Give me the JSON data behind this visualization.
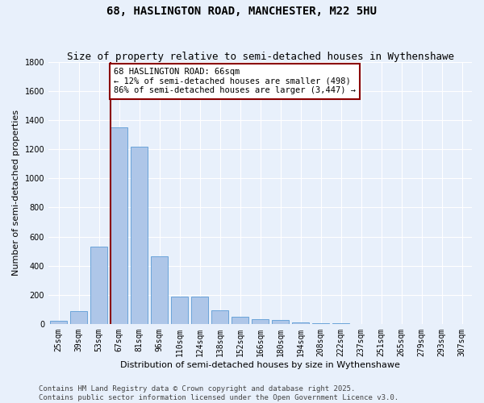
{
  "title": "68, HASLINGTON ROAD, MANCHESTER, M22 5HU",
  "subtitle": "Size of property relative to semi-detached houses in Wythenshawe",
  "xlabel": "Distribution of semi-detached houses by size in Wythenshawe",
  "ylabel": "Number of semi-detached properties",
  "footer_line1": "Contains HM Land Registry data © Crown copyright and database right 2025.",
  "footer_line2": "Contains public sector information licensed under the Open Government Licence v3.0.",
  "annotation_title": "68 HASLINGTON ROAD: 66sqm",
  "annotation_line1": "← 12% of semi-detached houses are smaller (498)",
  "annotation_line2": "86% of semi-detached houses are larger (3,447) →",
  "bar_categories": [
    "25sqm",
    "39sqm",
    "53sqm",
    "67sqm",
    "81sqm",
    "96sqm",
    "110sqm",
    "124sqm",
    "138sqm",
    "152sqm",
    "166sqm",
    "180sqm",
    "194sqm",
    "208sqm",
    "222sqm",
    "237sqm",
    "251sqm",
    "265sqm",
    "279sqm",
    "293sqm",
    "307sqm"
  ],
  "bar_values": [
    20,
    85,
    530,
    1350,
    1220,
    465,
    185,
    185,
    95,
    50,
    32,
    25,
    10,
    5,
    2,
    1,
    0,
    0,
    0,
    0,
    0
  ],
  "bar_color": "#aec6e8",
  "bar_edge_color": "#5b9bd5",
  "vline_color": "#8b0000",
  "vline_x_index": 3,
  "ylim": [
    0,
    1800
  ],
  "yticks": [
    0,
    200,
    400,
    600,
    800,
    1000,
    1200,
    1400,
    1600,
    1800
  ],
  "bg_color": "#e8f0fb",
  "grid_color": "#ffffff",
  "annotation_box_color": "#ffffff",
  "annotation_box_edge": "#8b0000",
  "title_fontsize": 10,
  "subtitle_fontsize": 9,
  "axis_label_fontsize": 8,
  "tick_fontsize": 7,
  "annotation_fontsize": 7.5,
  "footer_fontsize": 6.5
}
